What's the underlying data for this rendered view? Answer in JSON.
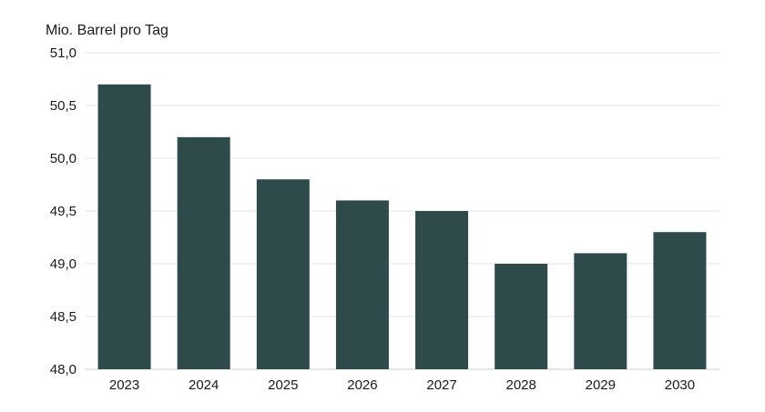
{
  "chart_data": {
    "type": "bar",
    "ylabel": "Mio. Barrel pro Tag",
    "categories": [
      "2023",
      "2024",
      "2025",
      "2026",
      "2027",
      "2028",
      "2029",
      "2030"
    ],
    "values": [
      50.7,
      50.2,
      49.8,
      49.6,
      49.5,
      49.0,
      49.1,
      49.3
    ],
    "ylim": [
      48.0,
      51.0
    ],
    "yticks": [
      48.0,
      48.5,
      49.0,
      49.5,
      50.0,
      50.5,
      51.0
    ],
    "ytick_labels": [
      "48,0",
      "48,5",
      "49,0",
      "49,5",
      "50,0",
      "50,5",
      "51,0"
    ],
    "grid": true,
    "bar_color": "#2f4a4b"
  }
}
